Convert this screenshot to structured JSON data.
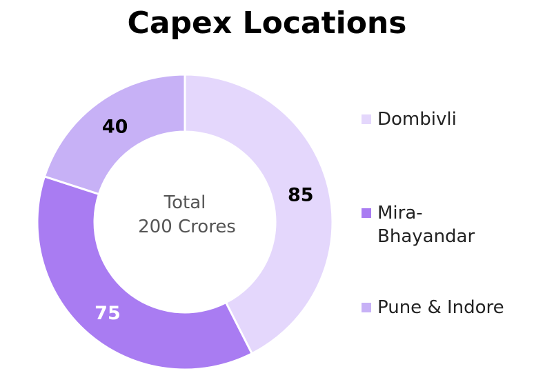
{
  "chart_data": {
    "type": "pie",
    "title": "Capex Locations",
    "center_label": [
      "Total",
      "200 Crores"
    ],
    "categories": [
      "Dombivli",
      "Mira-\nBhayandar",
      "Pune & Indore"
    ],
    "values": [
      85,
      75,
      40
    ],
    "colors": [
      "#e4d7fc",
      "#a97cf2",
      "#c7b1f6"
    ],
    "label_colors": [
      "#000000",
      "#ffffff",
      "#000000"
    ],
    "legend_position": "right",
    "donut": true
  }
}
